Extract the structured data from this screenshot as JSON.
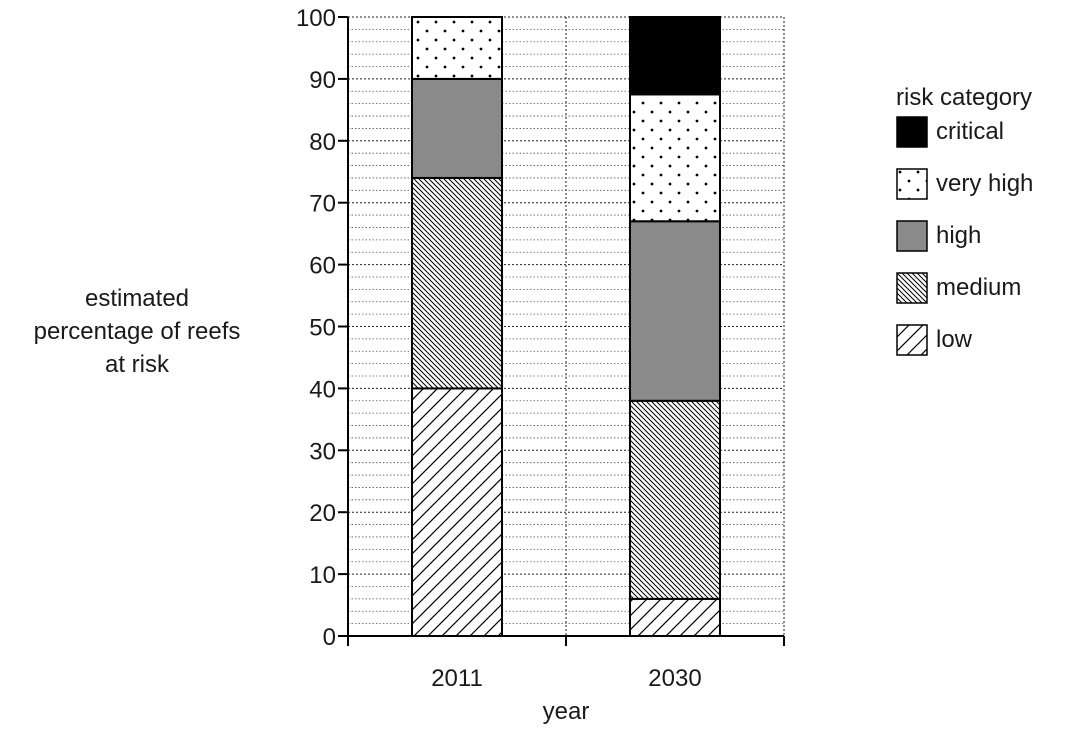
{
  "chart_data": {
    "type": "bar",
    "stacked": true,
    "categories": [
      "2011",
      "2030"
    ],
    "series": [
      {
        "name": "low",
        "pattern": "diagonal-forward",
        "values": [
          40,
          6
        ]
      },
      {
        "name": "medium",
        "pattern": "diagonal-dense-back",
        "values": [
          34,
          32
        ]
      },
      {
        "name": "high",
        "pattern": "solid-grey",
        "color": "#8a8a8a",
        "values": [
          16,
          29
        ]
      },
      {
        "name": "very high",
        "pattern": "dots",
        "values": [
          10,
          20.5
        ]
      },
      {
        "name": "critical",
        "pattern": "solid-black",
        "color": "#000000",
        "values": [
          0,
          12.5
        ]
      }
    ],
    "xlabel": "year",
    "ylabel_lines": [
      "estimated",
      "percentage of reefs",
      "at risk"
    ],
    "ylim": [
      0,
      100
    ],
    "yticks": [
      0,
      10,
      20,
      30,
      40,
      50,
      60,
      70,
      80,
      90,
      100
    ],
    "grid": true,
    "legend": {
      "title": "risk category",
      "placement": "right",
      "order": [
        "critical",
        "very high",
        "high",
        "medium",
        "low"
      ]
    }
  }
}
